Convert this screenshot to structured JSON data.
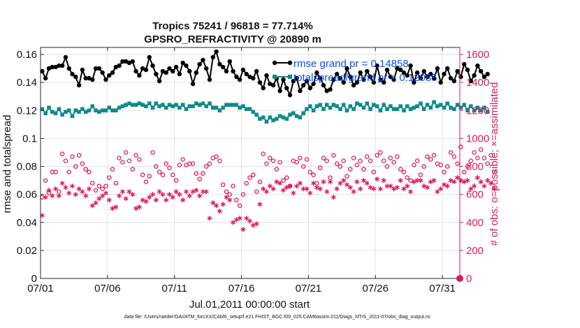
{
  "chart_data": {
    "type": "line",
    "title_line1": "Tropics 75241 / 96818 = 77.714%",
    "title_line2": "GPSRO_REFRACTIVITY @ 20890 m",
    "xlabel": "Jul.01,2011 00:00:00 start",
    "ylabel_left": "rmse and totalspread",
    "ylabel_right": "# of obs: o=possible; ×=assimilated",
    "x_days_range": [
      0,
      31.3
    ],
    "ylim_left": [
      0,
      0.165
    ],
    "ylim_right": [
      0,
      1650
    ],
    "x_ticks": [
      {
        "day": 0,
        "label": "07/01"
      },
      {
        "day": 5,
        "label": "07/06"
      },
      {
        "day": 10,
        "label": "07/11"
      },
      {
        "day": 15,
        "label": "07/16"
      },
      {
        "day": 20,
        "label": "07/21"
      },
      {
        "day": 25,
        "label": "07/26"
      },
      {
        "day": 30,
        "label": "07/31"
      }
    ],
    "y_ticks_left": [
      "0",
      "0.02",
      "0.04",
      "0.06",
      "0.08",
      "0.1",
      "0.12",
      "0.14",
      "0.16"
    ],
    "y_ticks_right": [
      "0",
      "200",
      "400",
      "600",
      "800",
      "1000",
      "1200",
      "1400",
      "1600"
    ],
    "time_step_days": 0.25,
    "series": [
      {
        "name": "rmse",
        "legend": "rmse grand pr = 0.14858",
        "color": "#000000",
        "axis": "left",
        "values": [
          0.148,
          0.143,
          0.15,
          0.151,
          0.151,
          0.152,
          0.152,
          0.158,
          0.15,
          0.146,
          0.144,
          0.138,
          0.149,
          0.143,
          0.143,
          0.142,
          0.15,
          0.15,
          0.147,
          0.142,
          0.145,
          0.147,
          0.151,
          0.152,
          0.155,
          0.155,
          0.154,
          0.155,
          0.148,
          0.145,
          0.15,
          0.149,
          0.158,
          0.152,
          0.146,
          0.141,
          0.148,
          0.147,
          0.15,
          0.148,
          0.151,
          0.146,
          0.154,
          0.152,
          0.148,
          0.139,
          0.147,
          0.153,
          0.156,
          0.15,
          0.142,
          0.158,
          0.162,
          0.153,
          0.151,
          0.148,
          0.155,
          0.148,
          0.144,
          0.142,
          0.149,
          0.146,
          0.144,
          0.143,
          0.148,
          0.14,
          0.136,
          0.145,
          0.139,
          0.138,
          0.143,
          0.134,
          0.142,
          0.136,
          0.131,
          0.141,
          0.143,
          0.134,
          0.138,
          0.141,
          0.136,
          0.139,
          0.147,
          0.143,
          0.138,
          0.134,
          0.135,
          0.142,
          0.146,
          0.143,
          0.14,
          0.15,
          0.144,
          0.138,
          0.14,
          0.147,
          0.142,
          0.148,
          0.144,
          0.14,
          0.152,
          0.142,
          0.14,
          0.149,
          0.144,
          0.142,
          0.15,
          0.149,
          0.147,
          0.145,
          0.152,
          0.14,
          0.147,
          0.143,
          0.148,
          0.144,
          0.146,
          0.143,
          0.15,
          0.14,
          0.146,
          0.15,
          0.143,
          0.141,
          0.148,
          0.144,
          0.153,
          0.149,
          0.141,
          0.145,
          0.152,
          0.148,
          0.144,
          0.146
        ]
      },
      {
        "name": "totalspread",
        "legend": "totalspread/grand pr = 0.12085",
        "color": "#0f8a8a",
        "axis": "left",
        "values": [
          0.121,
          0.118,
          0.122,
          0.119,
          0.118,
          0.121,
          0.117,
          0.119,
          0.12,
          0.116,
          0.12,
          0.119,
          0.121,
          0.119,
          0.12,
          0.123,
          0.12,
          0.119,
          0.12,
          0.12,
          0.122,
          0.12,
          0.12,
          0.122,
          0.123,
          0.124,
          0.125,
          0.124,
          0.124,
          0.125,
          0.124,
          0.123,
          0.125,
          0.122,
          0.125,
          0.123,
          0.124,
          0.122,
          0.124,
          0.123,
          0.124,
          0.122,
          0.124,
          0.121,
          0.123,
          0.123,
          0.125,
          0.124,
          0.125,
          0.123,
          0.125,
          0.122,
          0.122,
          0.12,
          0.122,
          0.124,
          0.124,
          0.124,
          0.124,
          0.122,
          0.123,
          0.121,
          0.121,
          0.119,
          0.117,
          0.114,
          0.115,
          0.112,
          0.115,
          0.113,
          0.114,
          0.116,
          0.115,
          0.114,
          0.117,
          0.118,
          0.116,
          0.115,
          0.118,
          0.121,
          0.123,
          0.12,
          0.123,
          0.124,
          0.121,
          0.124,
          0.122,
          0.124,
          0.123,
          0.121,
          0.124,
          0.12,
          0.123,
          0.121,
          0.125,
          0.124,
          0.122,
          0.125,
          0.121,
          0.124,
          0.123,
          0.12,
          0.124,
          0.121,
          0.123,
          0.121,
          0.121,
          0.123,
          0.12,
          0.123,
          0.121,
          0.122,
          0.123,
          0.125,
          0.121,
          0.124,
          0.122,
          0.126,
          0.123,
          0.124,
          0.122,
          0.125,
          0.122,
          0.121,
          0.124,
          0.122,
          0.124,
          0.12,
          0.123,
          0.12,
          0.122,
          0.12,
          0.122,
          0.119
        ]
      },
      {
        "name": "possible",
        "legend": "",
        "color": "#d81b60",
        "axis": "right",
        "marker": "circle",
        "values": [
          580,
          700,
          610,
          760,
          760,
          620,
          890,
          840,
          760,
          870,
          800,
          880,
          820,
          780,
          760,
          680,
          630,
          660,
          640,
          660,
          720,
          780,
          680,
          860,
          830,
          900,
          840,
          780,
          880,
          850,
          740,
          690,
          730,
          900,
          800,
          760,
          740,
          820,
          790,
          740,
          700,
          810,
          850,
          810,
          820,
          820,
          750,
          710,
          750,
          800,
          820,
          860,
          870,
          840,
          670,
          620,
          600,
          660,
          560,
          520,
          600,
          680,
          720,
          740,
          620,
          690,
          890,
          820,
          860,
          840,
          780,
          830,
          700,
          720,
          660,
          840,
          830,
          860,
          800,
          850,
          760,
          740,
          680,
          790,
          860,
          840,
          720,
          880,
          820,
          800,
          840,
          730,
          780,
          860,
          810,
          840,
          780,
          870,
          840,
          760,
          880,
          900,
          840,
          800,
          860,
          830,
          870,
          780,
          760,
          720,
          700,
          810,
          840,
          740,
          800,
          870,
          850,
          880,
          820,
          810,
          760,
          800,
          900,
          870,
          820,
          940,
          760,
          800,
          840,
          900,
          860,
          920,
          860,
          820,
          880,
          760
        ]
      },
      {
        "name": "assimilated",
        "legend": "",
        "color": "#d81b60",
        "axis": "right",
        "marker": "asterisk",
        "values": [
          450,
          580,
          630,
          590,
          640,
          590,
          680,
          650,
          610,
          660,
          600,
          640,
          620,
          590,
          640,
          520,
          540,
          570,
          590,
          610,
          560,
          500,
          510,
          590,
          620,
          570,
          620,
          600,
          500,
          510,
          560,
          550,
          580,
          600,
          560,
          620,
          600,
          560,
          600,
          580,
          620,
          600,
          560,
          620,
          590,
          620,
          630,
          590,
          620,
          620,
          430,
          540,
          520,
          480,
          530,
          580,
          560,
          400,
          420,
          430,
          350,
          430,
          410,
          380,
          390,
          530,
          640,
          620,
          660,
          640,
          690,
          680,
          630,
          650,
          660,
          610,
          660,
          680,
          640,
          640,
          610,
          680,
          650,
          640,
          690,
          620,
          690,
          580,
          640,
          680,
          700,
          670,
          650,
          620,
          690,
          640,
          700,
          680,
          650,
          640,
          710,
          640,
          700,
          660,
          660,
          640,
          650,
          700,
          640,
          660,
          620,
          690,
          700,
          700,
          660,
          650,
          690,
          700,
          620,
          640,
          670,
          660,
          700,
          690,
          720,
          700,
          690,
          700,
          640,
          660,
          720,
          690,
          660,
          700,
          680,
          640
        ]
      }
    ],
    "grid": true
  },
  "footer": "data file: /Users/raeder/DAI/ATM_forcXX/CAM6_setup/f.e21.FHIST_BGC.f09_025.CAM6assim.011/Diags_NTrS_2011-07/obs_diag_output.nc"
}
